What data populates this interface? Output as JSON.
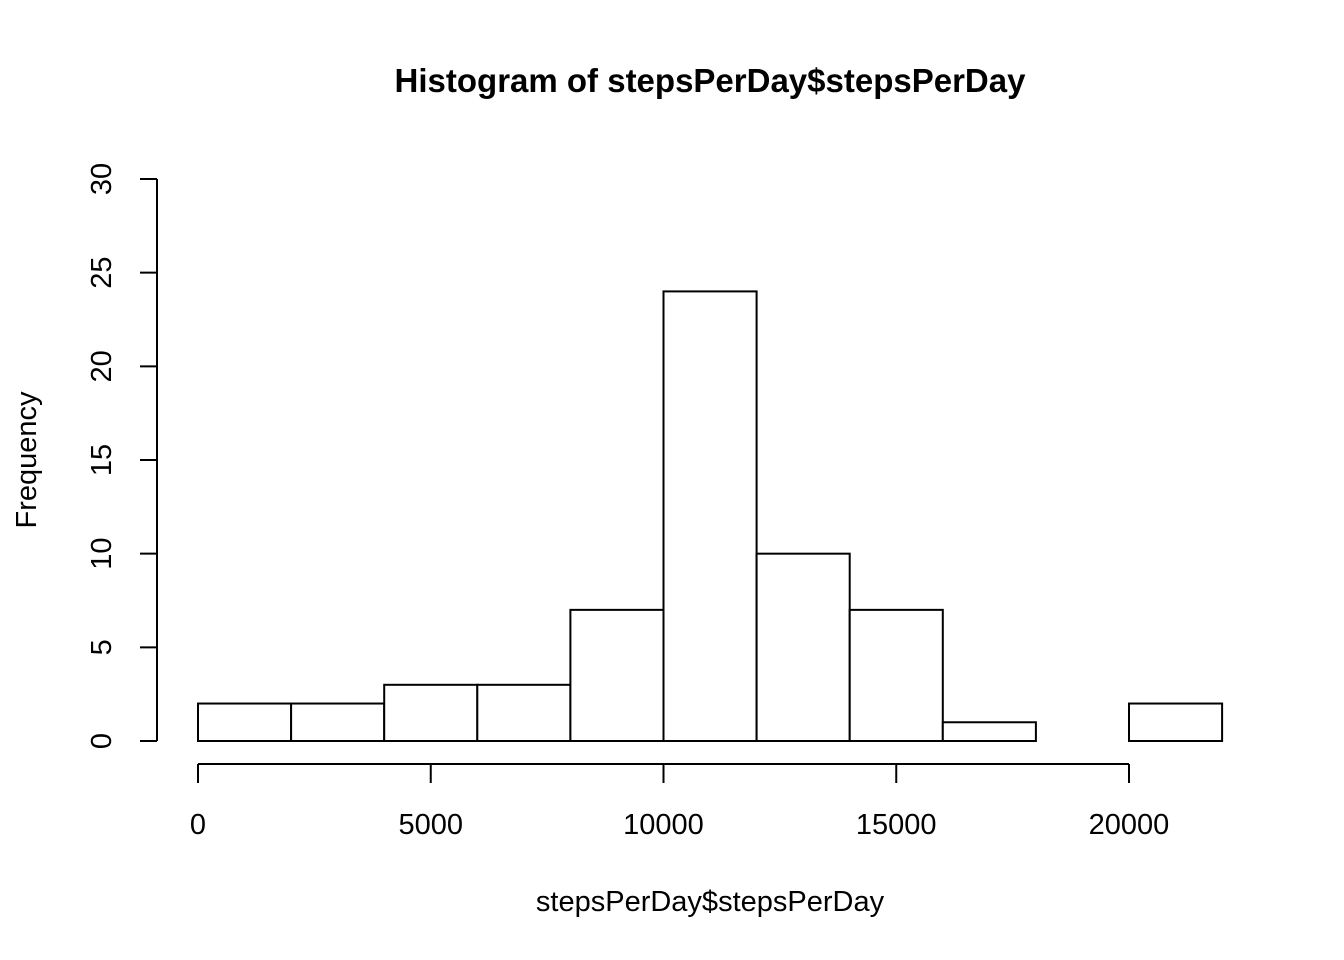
{
  "chart_data": {
    "type": "bar",
    "title": "Histogram of stepsPerDay$stepsPerDay",
    "xlabel": "stepsPerDay$stepsPerDay",
    "ylabel": "Frequency",
    "bins": [
      {
        "start": 0,
        "end": 2000,
        "count": 2
      },
      {
        "start": 2000,
        "end": 4000,
        "count": 2
      },
      {
        "start": 4000,
        "end": 6000,
        "count": 3
      },
      {
        "start": 6000,
        "end": 8000,
        "count": 3
      },
      {
        "start": 8000,
        "end": 10000,
        "count": 7
      },
      {
        "start": 10000,
        "end": 12000,
        "count": 24
      },
      {
        "start": 12000,
        "end": 14000,
        "count": 10
      },
      {
        "start": 14000,
        "end": 16000,
        "count": 7
      },
      {
        "start": 16000,
        "end": 18000,
        "count": 1
      },
      {
        "start": 18000,
        "end": 20000,
        "count": 0
      },
      {
        "start": 20000,
        "end": 22000,
        "count": 2
      }
    ],
    "xticks": [
      0,
      5000,
      10000,
      15000,
      20000
    ],
    "yticks": [
      0,
      5,
      10,
      15,
      20,
      25,
      30
    ],
    "xlim": [
      0,
      20000
    ],
    "ylim": [
      0,
      30
    ],
    "grid": false,
    "bar_fill": "#ffffff",
    "bar_stroke": "#000000"
  }
}
